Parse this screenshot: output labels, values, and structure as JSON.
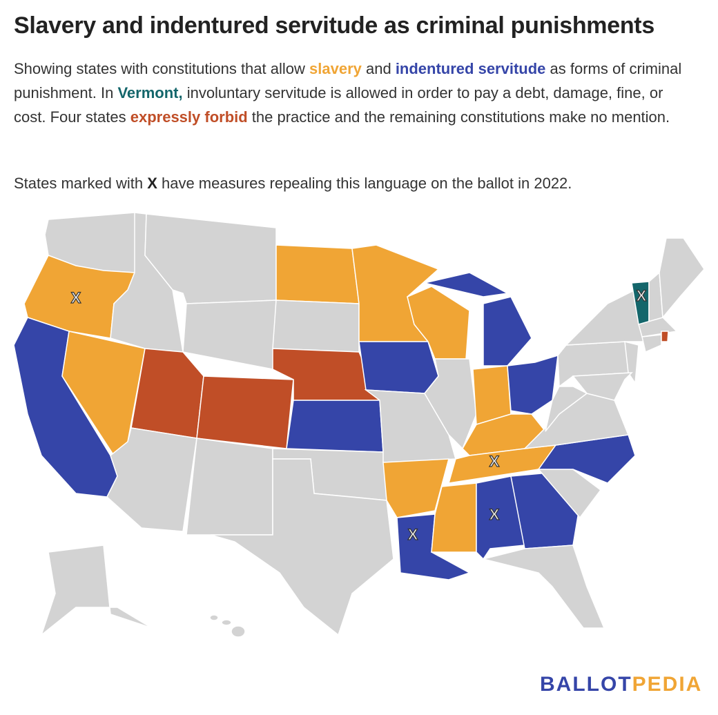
{
  "title": "Slavery and indentured servitude as criminal punishments",
  "description": [
    "Showing states with constitutions that allow ",
    "slavery",
    " and ",
    "indentured servitude",
    " as forms of criminal punishment. In ",
    "Vermont,",
    " involuntary servitude is allowed in order to pay a debt, damage, fine, or cost. Four states ",
    "expressly forbid",
    " the practice and the remaining constitutions make no mention."
  ],
  "note": [
    "States marked with ",
    "X",
    " have measures repealing this language on the ballot in 2022."
  ],
  "markers": [
    "X",
    "X",
    "X",
    "X",
    "X"
  ],
  "logo": [
    "BALLOT",
    "PEDIA"
  ]
}
